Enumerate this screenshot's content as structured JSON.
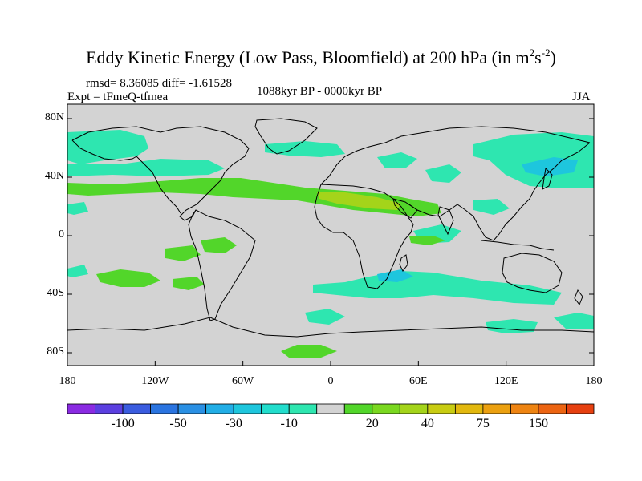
{
  "title": {
    "main": "Eddy Kinetic Energy (Low Pass, Bloomfield) at 200 hPa (in m",
    "sup1": "2",
    "s": "s",
    "sup2": "-2",
    "close": ")"
  },
  "stats": "rmsd= 8.36085 diff= -1.61528",
  "experiment": "Expt = tFmeQ-tfmea",
  "period": "1088kyr BP - 0000kyr BP",
  "season": "JJA",
  "y_ticks": [
    {
      "label": "80N",
      "lat": 80
    },
    {
      "label": "40N",
      "lat": 40
    },
    {
      "label": "0",
      "lat": 0
    },
    {
      "label": "40S",
      "lat": -40
    },
    {
      "label": "80S",
      "lat": -80
    }
  ],
  "x_ticks": [
    {
      "label": "180",
      "lon": -180
    },
    {
      "label": "120W",
      "lon": -120
    },
    {
      "label": "60W",
      "lon": -60
    },
    {
      "label": "0",
      "lon": 0
    },
    {
      "label": "60E",
      "lon": 60
    },
    {
      "label": "120E",
      "lon": 120
    },
    {
      "label": "180",
      "lon": 180
    }
  ],
  "colorbar": {
    "colors": [
      "#8a2be2",
      "#5b3fe0",
      "#3a5cdf",
      "#2a74e0",
      "#2a90e4",
      "#22aee6",
      "#1ec6dd",
      "#22ddcc",
      "#2ee6b0",
      "#d3d3d3",
      "#52d62a",
      "#7ad820",
      "#a4d41a",
      "#c8cc12",
      "#e2b80e",
      "#eba010",
      "#ee8412",
      "#ec6412",
      "#e64010"
    ],
    "labels": [
      {
        "text": "-100",
        "boundary": 2
      },
      {
        "text": "-50",
        "boundary": 4
      },
      {
        "text": "-30",
        "boundary": 6
      },
      {
        "text": "-10",
        "boundary": 8
      },
      {
        "text": "20",
        "boundary": 11
      },
      {
        "text": "40",
        "boundary": 13
      },
      {
        "text": "75",
        "boundary": 15
      },
      {
        "text": "150",
        "boundary": 17
      }
    ]
  },
  "colors": {
    "background": "#d3d3d3",
    "coastline": "#000000",
    "teal": "#2ee6b0",
    "teal_dark": "#1ec6dd",
    "green": "#52d62a",
    "yellow_green": "#a4d41a"
  }
}
